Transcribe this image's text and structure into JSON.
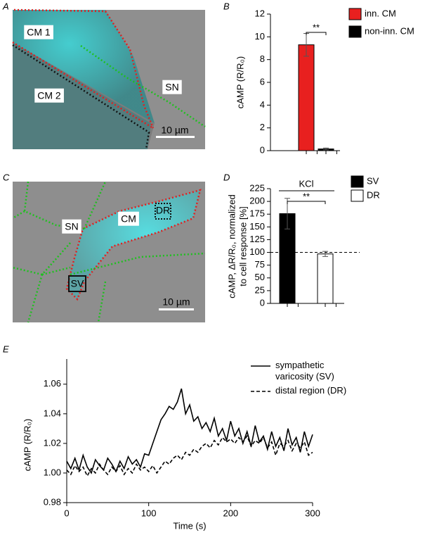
{
  "panel_labels": [
    "A",
    "B",
    "C",
    "D",
    "E"
  ],
  "images": [
    {
      "labels": [
        "CM 1",
        "CM 2",
        "SN"
      ],
      "scale_bar": "10 µm"
    },
    {
      "labels": [
        "SN",
        "CM",
        "DR",
        "SV"
      ],
      "scale_bar": "10 µm"
    }
  ],
  "chart_data": [
    {
      "type": "bar",
      "ylabel": "cAMP (R/R₀)",
      "ylim": [
        0,
        12
      ],
      "yticks": [
        0,
        2,
        4,
        6,
        8,
        10,
        12
      ],
      "series": [
        {
          "name": "inn. CM",
          "color": "#e8201f",
          "values": [
            9.3
          ],
          "errors": [
            1.0
          ]
        },
        {
          "name": "non-inn. CM",
          "color": "#000000",
          "values": [
            0.15
          ],
          "errors": [
            0.08
          ]
        }
      ],
      "annotations": [
        "**"
      ]
    },
    {
      "type": "bar",
      "ylabel": [
        "cAMP, ΔR/R₀, normalized",
        "to cell response [%]"
      ],
      "ylim": [
        0,
        225
      ],
      "yticks": [
        0,
        25,
        50,
        75,
        100,
        125,
        150,
        175,
        200,
        225
      ],
      "series": [
        {
          "name": "SV",
          "color": "#000000",
          "values": [
            176
          ],
          "errors": [
            30
          ]
        },
        {
          "name": "DR",
          "color": "#ffffff",
          "values": [
            97
          ],
          "errors": [
            5
          ]
        }
      ],
      "reference_line": 100,
      "annotations": [
        "KCl",
        "**"
      ]
    },
    {
      "type": "line",
      "ylabel": "cAMP (R/R₀)",
      "xlabel": "Time (s)",
      "xlim": [
        0,
        300
      ],
      "ylim": [
        0.98,
        1.077
      ],
      "xticks": [
        0,
        100,
        200,
        300
      ],
      "yticks": [
        0.98,
        {
          "value": 1,
          "label": "1.00"
        },
        1.02,
        1.04,
        1.06
      ],
      "x": [
        0,
        5,
        10,
        15,
        20,
        25,
        30,
        35,
        40,
        45,
        50,
        55,
        60,
        65,
        70,
        75,
        80,
        85,
        90,
        95,
        100,
        105,
        110,
        115,
        120,
        125,
        130,
        135,
        140,
        145,
        150,
        155,
        160,
        165,
        170,
        175,
        180,
        185,
        190,
        195,
        200,
        205,
        210,
        215,
        220,
        225,
        230,
        235,
        240,
        245,
        250,
        255,
        260,
        265,
        270,
        275,
        280,
        285,
        290,
        295,
        300
      ],
      "series": [
        {
          "name": "sympathetic varicosity (SV)",
          "color": "#000000",
          "dash": false,
          "values": [
            1.008,
            1.003,
            1.01,
            1.002,
            1.012,
            1.004,
            1.0,
            1.009,
            1.005,
            1.002,
            1.01,
            1.006,
            1.001,
            1.008,
            1.003,
            1.011,
            1.006,
            1.009,
            1.004,
            1.013,
            1.012,
            1.02,
            1.028,
            1.036,
            1.04,
            1.045,
            1.043,
            1.048,
            1.057,
            1.04,
            1.046,
            1.035,
            1.038,
            1.03,
            1.034,
            1.028,
            1.037,
            1.025,
            1.03,
            1.022,
            1.035,
            1.025,
            1.03,
            1.02,
            1.028,
            1.018,
            1.032,
            1.021,
            1.025,
            1.016,
            1.028,
            1.018,
            1.024,
            1.015,
            1.03,
            1.019,
            1.024,
            1.014,
            1.028,
            1.018,
            1.026
          ]
        },
        {
          "name": "distal region (DR)",
          "color": "#000000",
          "dash": true,
          "values": [
            1.002,
            0.999,
            1.005,
            1.001,
            1.004,
            0.998,
            1.003,
            1.0,
            1.006,
            1.002,
            0.999,
            1.004,
            1.001,
            1.005,
            0.999,
            1.003,
            1.0,
            1.006,
            1.002,
            1.004,
            1.001,
            1.005,
            1.0,
            1.004,
            1.008,
            1.006,
            1.01,
            1.012,
            1.009,
            1.014,
            1.012,
            1.016,
            1.014,
            1.018,
            1.02,
            1.017,
            1.022,
            1.019,
            1.024,
            1.021,
            1.023,
            1.02,
            1.024,
            1.021,
            1.025,
            1.018,
            1.022,
            1.02,
            1.024,
            1.017,
            1.021,
            1.012,
            1.02,
            1.018,
            1.022,
            1.015,
            1.02,
            1.017,
            1.021,
            1.012,
            1.014
          ]
        }
      ]
    }
  ]
}
